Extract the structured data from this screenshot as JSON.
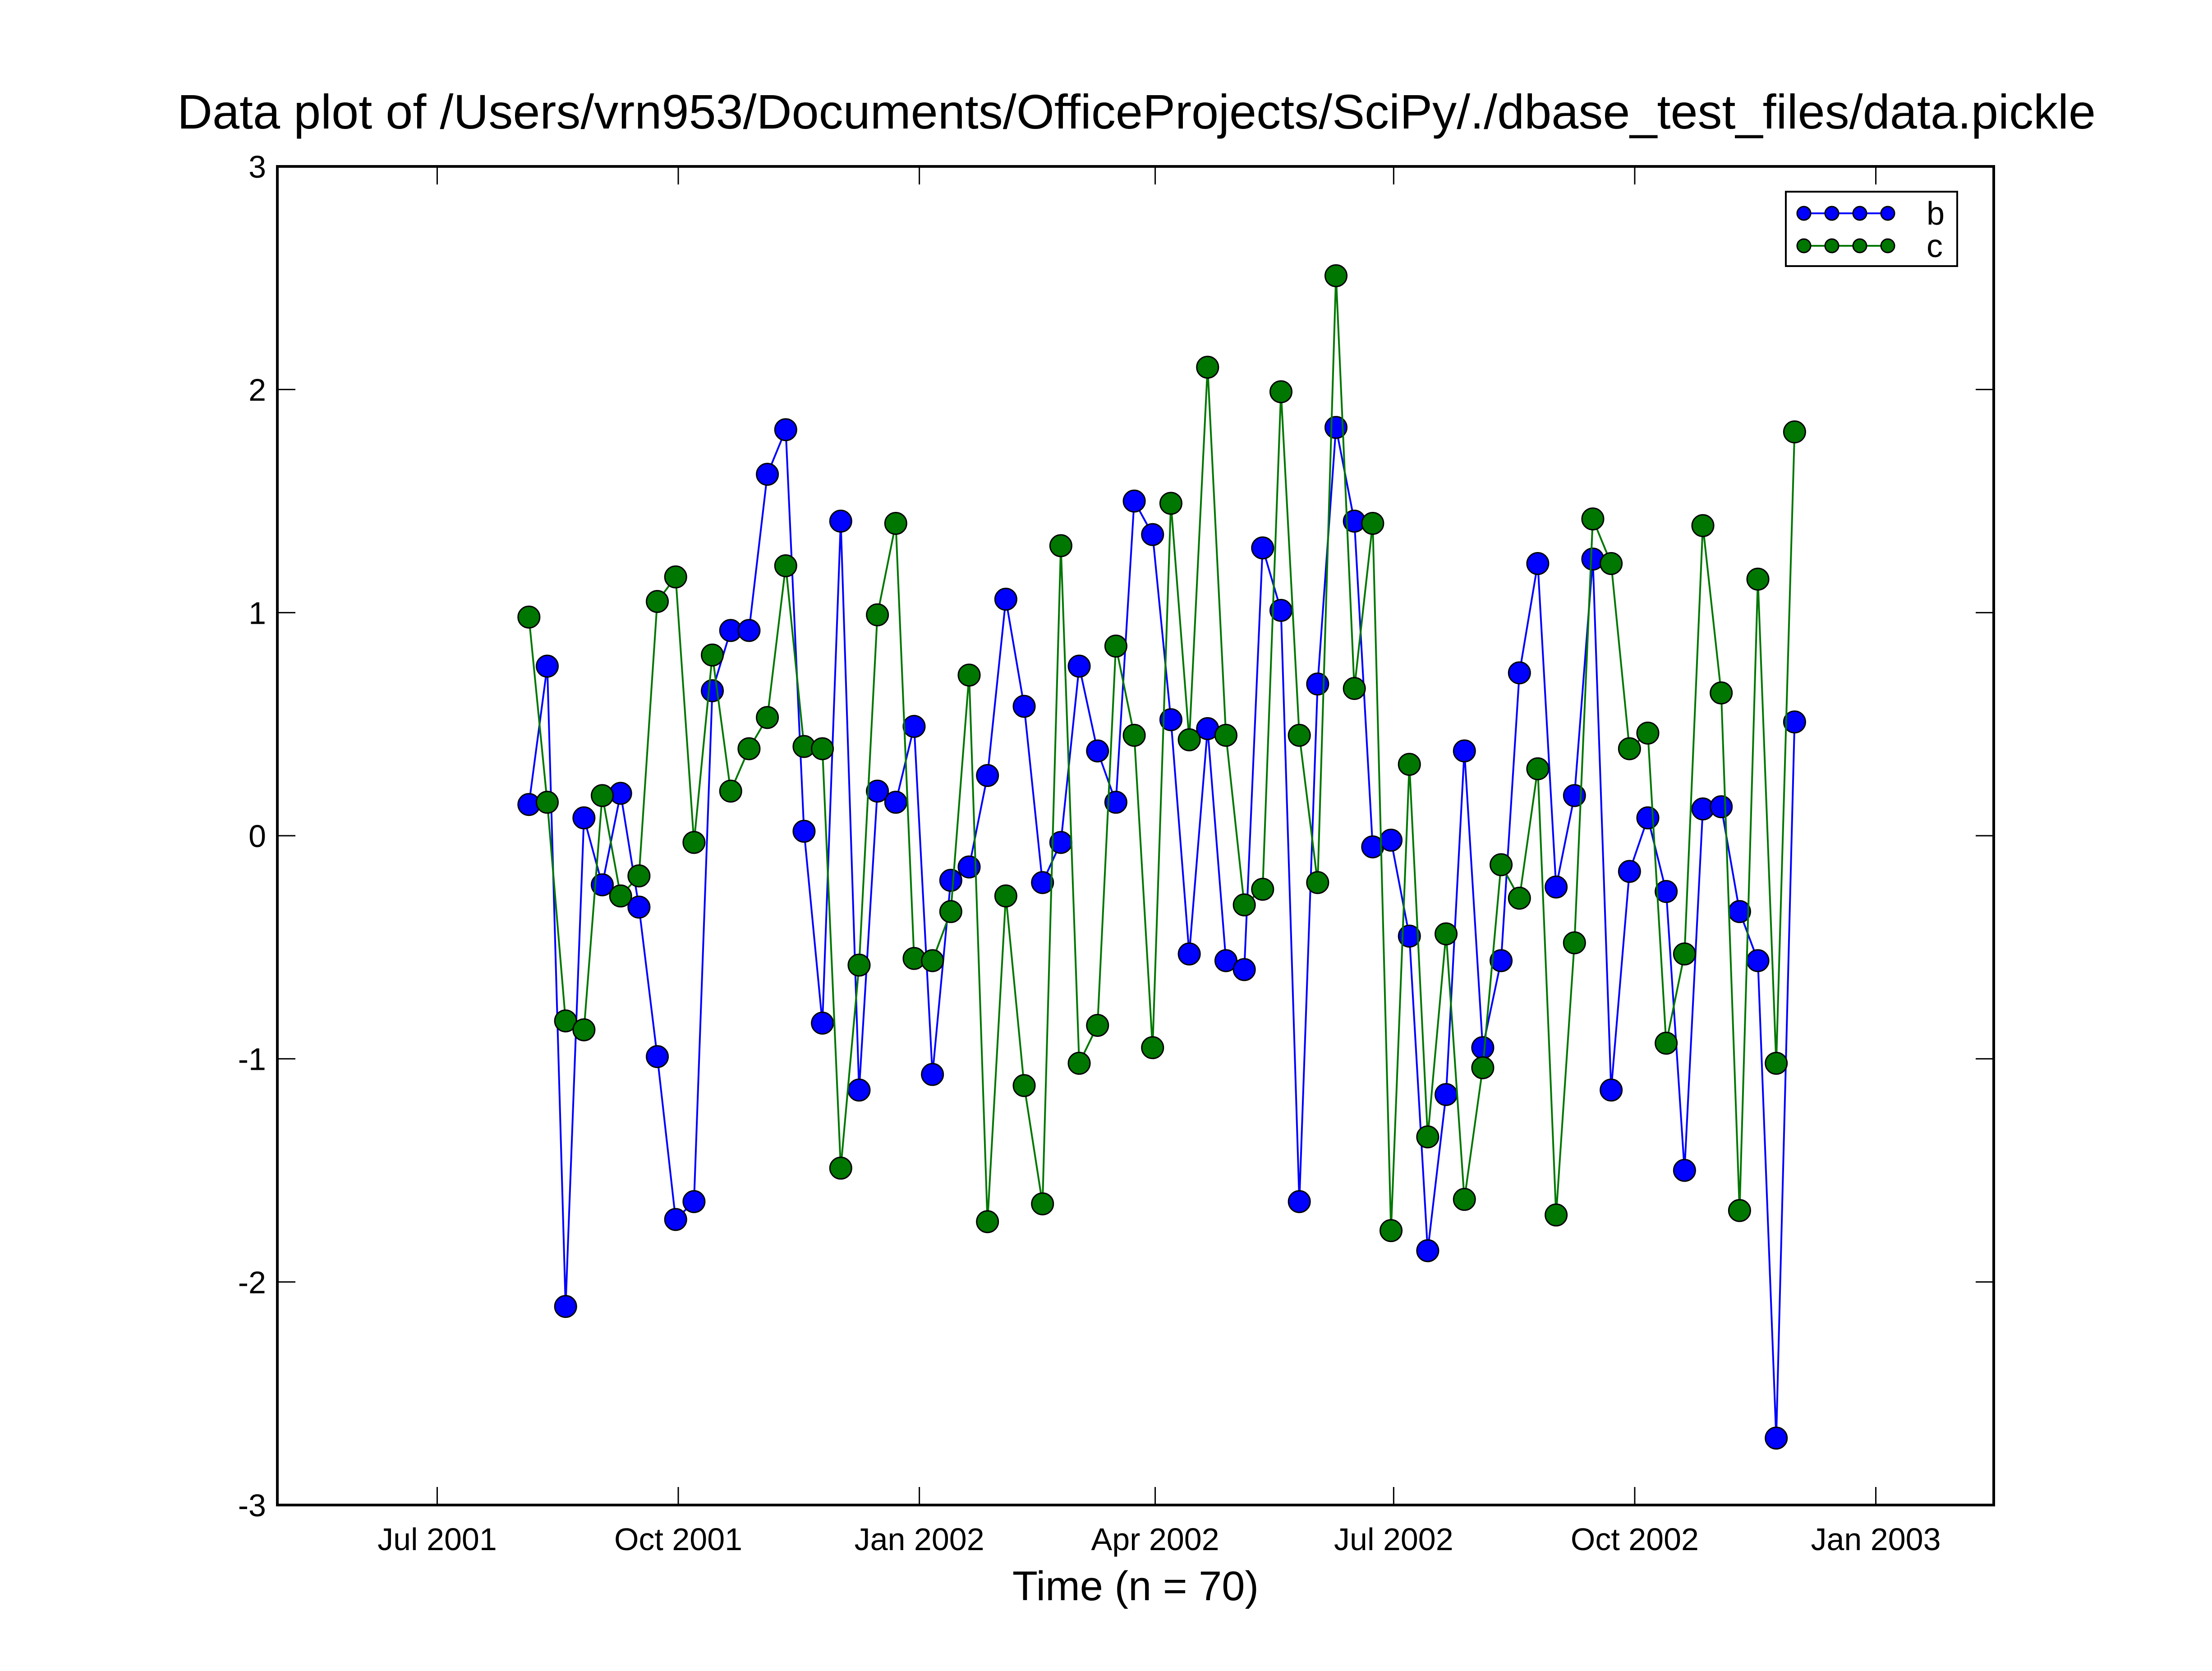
{
  "chart_data": {
    "type": "line",
    "title": "Data plot of /Users/vrn953/Documents/OfficeProjects/SciPy/./dbase_test_files/data.pickle",
    "xlabel": "Time (n = 70)",
    "ylabel": "",
    "xlim": [
      "2001-05-01",
      "2003-02-15"
    ],
    "ylim": [
      -3,
      3
    ],
    "grid": false,
    "legend_position": "top-right",
    "x_ticks": [
      "2001-07-01",
      "2001-10-01",
      "2002-01-01",
      "2002-04-01",
      "2002-07-01",
      "2002-10-01",
      "2003-01-01"
    ],
    "x_tick_labels": [
      "Jul 2001",
      "Oct 2001",
      "Jan 2002",
      "Apr 2002",
      "Jul 2002",
      "Oct 2002",
      "Jan 2003"
    ],
    "y_ticks": [
      -3,
      -2,
      -1,
      0,
      1,
      2,
      3
    ],
    "y_tick_labels": [
      "-3",
      "-2",
      "-1",
      "0",
      "1",
      "2",
      "3"
    ],
    "x": [
      "2001-08-05",
      "2001-08-12",
      "2001-08-19",
      "2001-08-26",
      "2001-09-02",
      "2001-09-09",
      "2001-09-16",
      "2001-09-23",
      "2001-09-30",
      "2001-10-07",
      "2001-10-14",
      "2001-10-21",
      "2001-10-28",
      "2001-11-04",
      "2001-11-11",
      "2001-11-18",
      "2001-11-25",
      "2001-12-02",
      "2001-12-09",
      "2001-12-16",
      "2001-12-23",
      "2001-12-30",
      "2002-01-06",
      "2002-01-13",
      "2002-01-20",
      "2002-01-27",
      "2002-02-03",
      "2002-02-10",
      "2002-02-17",
      "2002-02-24",
      "2002-03-03",
      "2002-03-10",
      "2002-03-17",
      "2002-03-24",
      "2002-03-31",
      "2002-04-07",
      "2002-04-14",
      "2002-04-21",
      "2002-04-28",
      "2002-05-05",
      "2002-05-12",
      "2002-05-19",
      "2002-05-26",
      "2002-06-02",
      "2002-06-09",
      "2002-06-16",
      "2002-06-23",
      "2002-06-30",
      "2002-07-07",
      "2002-07-14",
      "2002-07-21",
      "2002-07-28",
      "2002-08-04",
      "2002-08-11",
      "2002-08-18",
      "2002-08-25",
      "2002-09-01",
      "2002-09-08",
      "2002-09-15",
      "2002-09-22",
      "2002-09-29",
      "2002-10-06",
      "2002-10-13",
      "2002-10-20",
      "2002-10-27",
      "2002-11-03",
      "2002-11-10",
      "2002-11-17",
      "2002-11-24",
      "2002-12-01"
    ],
    "series": [
      {
        "name": "b",
        "color": "#0000ff",
        "values": [
          0.14,
          0.76,
          -2.11,
          0.08,
          -0.22,
          0.19,
          -0.32,
          -0.99,
          -1.72,
          -1.64,
          0.65,
          0.92,
          0.92,
          1.62,
          1.82,
          0.02,
          -0.84,
          1.41,
          -1.14,
          0.2,
          0.15,
          0.49,
          -1.07,
          -0.2,
          -0.14,
          0.27,
          1.06,
          0.58,
          -0.21,
          -0.03,
          0.76,
          0.38,
          0.15,
          1.5,
          1.35,
          0.52,
          -0.53,
          0.48,
          -0.56,
          -0.6,
          1.29,
          1.01,
          -1.64,
          0.68,
          1.83,
          1.41,
          -0.05,
          -0.02,
          -0.45,
          -1.86,
          -1.16,
          0.38,
          -0.95,
          -0.56,
          0.73,
          1.22,
          -0.23,
          0.18,
          1.24,
          -1.14,
          -0.16,
          0.08,
          -0.25,
          -1.5,
          0.12,
          0.13,
          -0.34,
          -0.56,
          -2.7,
          0.51
        ]
      },
      {
        "name": "c",
        "color": "#007700",
        "values": [
          0.98,
          0.15,
          -0.83,
          -0.87,
          0.18,
          -0.27,
          -0.18,
          1.05,
          1.16,
          -0.03,
          0.81,
          0.2,
          0.39,
          0.53,
          1.21,
          0.4,
          0.39,
          -1.49,
          -0.58,
          0.99,
          1.4,
          -0.55,
          -0.56,
          -0.34,
          0.72,
          -1.73,
          -0.27,
          -1.12,
          -1.65,
          1.3,
          -1.02,
          -0.85,
          0.85,
          0.45,
          -0.95,
          1.49,
          0.43,
          2.1,
          0.45,
          -0.31,
          -0.24,
          1.99,
          0.45,
          -0.21,
          2.51,
          0.66,
          1.4,
          -1.77,
          0.32,
          -1.35,
          -0.44,
          -1.63,
          -1.04,
          -0.13,
          -0.28,
          0.3,
          -1.7,
          -0.48,
          1.42,
          1.22,
          0.39,
          0.46,
          -0.93,
          -0.53,
          1.39,
          0.64,
          -1.68,
          1.15,
          -1.02,
          1.81
        ]
      }
    ]
  }
}
